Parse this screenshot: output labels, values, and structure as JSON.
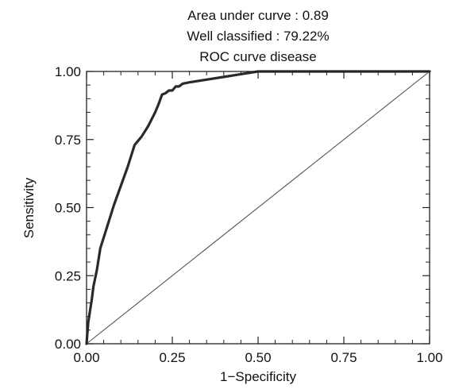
{
  "chart_data": {
    "type": "line",
    "title": "ROC curve disease",
    "subtitles": [
      "Area under curve : 0.89",
      "Well classified : 79.22%"
    ],
    "xlabel": "1−Specificity",
    "ylabel": "Sensitivity",
    "xlim": [
      0,
      1
    ],
    "ylim": [
      0,
      1
    ],
    "x_ticks": [
      "0.00",
      "0.25",
      "0.50",
      "0.75",
      "1.00"
    ],
    "y_ticks": [
      "0.00",
      "0.25",
      "0.50",
      "0.75",
      "1.00"
    ],
    "x_tick_values": [
      0,
      0.25,
      0.5,
      0.75,
      1
    ],
    "y_tick_values": [
      0,
      0.25,
      0.5,
      0.75,
      1
    ],
    "minor_tick_step": 0.05,
    "grid": false,
    "series": [
      {
        "line_style": "thick",
        "color": "#2a2a2a",
        "x": [
          0.0,
          0.005,
          0.01,
          0.015,
          0.02,
          0.03,
          0.04,
          0.05,
          0.06,
          0.08,
          0.1,
          0.12,
          0.14,
          0.16,
          0.18,
          0.2,
          0.21,
          0.22,
          0.23,
          0.24,
          0.25,
          0.26,
          0.27,
          0.28,
          0.3,
          0.35,
          0.4,
          0.45,
          0.5,
          0.6,
          0.7,
          0.8,
          0.9,
          1.0
        ],
        "y": [
          0.0,
          0.08,
          0.12,
          0.16,
          0.21,
          0.27,
          0.35,
          0.39,
          0.43,
          0.51,
          0.58,
          0.65,
          0.73,
          0.76,
          0.8,
          0.85,
          0.88,
          0.915,
          0.92,
          0.93,
          0.93,
          0.945,
          0.945,
          0.955,
          0.96,
          0.97,
          0.98,
          0.99,
          1.0,
          1.0,
          1.0,
          1.0,
          1.0,
          1.0
        ]
      },
      {
        "line_style": "thin",
        "color": "#555555",
        "x": [
          0,
          1
        ],
        "y": [
          0,
          1
        ]
      }
    ]
  }
}
